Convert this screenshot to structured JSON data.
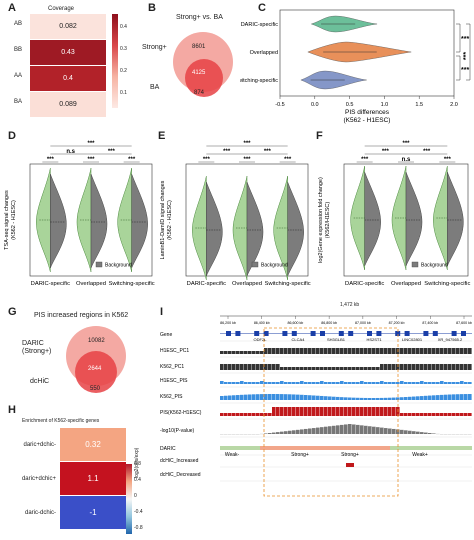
{
  "panels": {
    "A": {
      "label": "A",
      "title": "Coverage",
      "rows": [
        {
          "name": "AB",
          "value": "0.082",
          "color": "#fbe3dc"
        },
        {
          "name": "BB",
          "value": "0.43",
          "color": "#9e1a24"
        },
        {
          "name": "AA",
          "value": "0.4",
          "color": "#b22229"
        },
        {
          "name": "BA",
          "value": "0.089",
          "color": "#fbdfd7"
        }
      ],
      "colorbar_ticks": [
        "0.4",
        "0.3",
        "0.2",
        "0.1"
      ]
    },
    "B": {
      "label": "B",
      "title": "Strong+ vs. BA",
      "set1": "Strong+",
      "set2": "BA",
      "only1": "8601",
      "both": "4125",
      "only2": "874"
    },
    "C": {
      "label": "C",
      "categories": [
        "DARIC-specific",
        "Overlapped",
        "Switching-specific"
      ],
      "colors": [
        "#6cbf9a",
        "#e8905a",
        "#8597c8"
      ],
      "xticks": [
        "-0.5",
        "0.0",
        "0.5",
        "1.0",
        "1.5",
        "2.0"
      ],
      "xlabel": "PIS differences",
      "xlabel2": "(K562 - H1ESC)",
      "sig": [
        "***",
        "***",
        "***"
      ]
    },
    "D": {
      "label": "D",
      "ylabel": "TSA-seq signal changes",
      "ylabel2": "(K562 - H1ESC)",
      "categories": [
        "DARIC-specific",
        "Overlapped",
        "Switching-specific"
      ],
      "legend": "Background",
      "sig_top": "***",
      "sig_mid": [
        "n.s",
        "***"
      ],
      "sig_pair": [
        "***",
        "***",
        "***"
      ]
    },
    "E": {
      "label": "E",
      "ylabel": "LaminB1-DamID signal changes",
      "ylabel2": "(K562 - H1ESC)",
      "categories": [
        "DARIC-specific",
        "Overlapped",
        "Switching-specific"
      ],
      "legend": "Background",
      "sig_top": "***",
      "sig_mid": [
        "***",
        "***"
      ],
      "sig_pair": [
        "***",
        "***",
        "***"
      ]
    },
    "F": {
      "label": "F",
      "ylabel": "log2(Gene expression fold change)",
      "ylabel2": "(K562/H1ESC)",
      "categories": [
        "DARIC-specific",
        "Overlapped",
        "Switching-specific"
      ],
      "legend": "Background",
      "sig_top": "***",
      "sig_mid": [
        "***",
        "***"
      ],
      "sig_pair": [
        "***",
        "n.s",
        "***"
      ]
    },
    "G": {
      "label": "G",
      "title": "PIS increased regions in K562",
      "set1a": "DARIC",
      "set1b": "(Strong+)",
      "set2": "dcHiC",
      "only1": "10082",
      "both": "2644",
      "only2": "550"
    },
    "H": {
      "label": "H",
      "title": "Enrichment of K562-specific genes",
      "rows": [
        {
          "name": "daric+dchic-",
          "value": "0.32",
          "color": "#f4a582"
        },
        {
          "name": "daric+dchic+",
          "value": "1.1",
          "color": "#c4121f"
        },
        {
          "name": "daric-dchic-",
          "value": "-1",
          "color": "#3a4fc8"
        }
      ],
      "cbar_title": "log2(obs/exp)",
      "cbar_ticks": [
        "0.8",
        "0.4",
        "0",
        "-0.4",
        "-0.8"
      ]
    },
    "I": {
      "label": "I",
      "scale": "1,472 kb",
      "coords": [
        "86,200 kb",
        "86,400 kb",
        "86,600 kb",
        "86,800 kb",
        "87,000 kb",
        "87,200 kb",
        "87,400 kb",
        "87,600 kb"
      ],
      "tracks": [
        "Gene",
        "H1ESC_PC1",
        "K562_PC1",
        "H1ESC_PIS",
        "K562_PIS",
        "PIS(K562-H1ESC)",
        "-log10(P-value)",
        "DARIC",
        "dcHiC_Increased",
        "dcHiC_Decreased"
      ],
      "genes": [
        "ODF2L",
        "CLCA4",
        "SH3GLB1",
        "HS2ST1",
        "LINC02801",
        "XR_947565.2"
      ],
      "daric_states": [
        "Weak-",
        "Strong+",
        "Strong+",
        "Weak+"
      ]
    }
  }
}
